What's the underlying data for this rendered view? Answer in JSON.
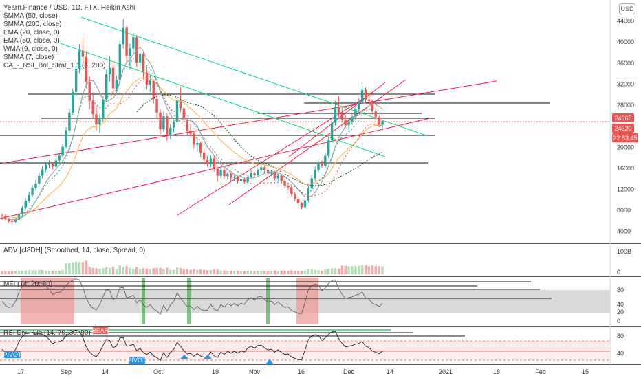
{
  "header": {
    "title": "Yearn.Finance / USD, 1D, FTX, Heikin Ashi",
    "currency_button": "USD"
  },
  "indicators": [
    "SMMA (50, close)",
    "SMMA (200, close)",
    "EMA (20, close, 0)",
    "EMA (50, close, 0)",
    "WMA (9, close, 0)",
    "SMMA (7, close)",
    "CA_-_RSI_Bol_Strat_1.1 (6, 200)"
  ],
  "price_tags": {
    "tag1": "24965",
    "tag2": "24320",
    "tag3": "22:53:45"
  },
  "panes": {
    "adv": {
      "label": "ADV [cI8DH] (Smoothed, 14, close, Spread, 0)",
      "ticks": [
        "100B",
        "0"
      ]
    },
    "mfi": {
      "label": "MFI (14, 20, 80)",
      "ticks": [
        "80",
        "40",
        "20",
        "0"
      ]
    },
    "rsi": {
      "label": "RSI Div - Lib (14, 70, 30, 90)",
      "ticks": [
        "80",
        "40"
      ],
      "tag_labels": {
        "bear": "BEAR",
        "pivot": "PIVOT"
      }
    }
  },
  "colors": {
    "bull": "#26a69a",
    "bear": "#ef5350",
    "green_line": "#00e676",
    "red_line": "#ff1744"
  },
  "chart_data": {
    "type": "candlestick",
    "title": "Yearn.Finance / USD, 1D, FTX, Heikin Ashi",
    "x_ticks": [
      "17",
      "Sep",
      "14",
      "Oct",
      "19",
      "Nov",
      "16",
      "Dec",
      "14",
      "2021",
      "18",
      "Feb",
      "15"
    ],
    "y_ticks": [
      "44000",
      "40000",
      "36000",
      "32000",
      "28000",
      "24000",
      "20000",
      "16000",
      "12000",
      "8000",
      "4000"
    ],
    "ylim": [
      2000,
      48000
    ],
    "candles": [
      [
        7000,
        7400,
        6200,
        6900
      ],
      [
        6900,
        7200,
        6100,
        6300
      ],
      [
        6300,
        6700,
        5600,
        5900
      ],
      [
        5900,
        6300,
        5400,
        5800
      ],
      [
        5800,
        6500,
        5500,
        6200
      ],
      [
        6200,
        7600,
        5900,
        7300
      ],
      [
        7300,
        8800,
        7000,
        8500
      ],
      [
        8500,
        10200,
        8200,
        9800
      ],
      [
        9800,
        11500,
        9400,
        10900
      ],
      [
        10900,
        12800,
        10500,
        12300
      ],
      [
        12300,
        13800,
        11800,
        13100
      ],
      [
        13100,
        15200,
        12800,
        14600
      ],
      [
        14600,
        16500,
        14000,
        15800
      ],
      [
        15800,
        17200,
        15300,
        16700
      ],
      [
        16700,
        17500,
        16000,
        16900
      ],
      [
        16900,
        17200,
        15800,
        16300
      ],
      [
        16300,
        17900,
        16000,
        17500
      ],
      [
        17500,
        18900,
        17200,
        18400
      ],
      [
        18400,
        20600,
        18100,
        20100
      ],
      [
        20100,
        23800,
        19700,
        23200
      ],
      [
        23200,
        27300,
        22800,
        26600
      ],
      [
        26600,
        31200,
        26100,
        30500
      ],
      [
        30500,
        35800,
        29900,
        34900
      ],
      [
        34900,
        39600,
        34100,
        38400
      ],
      [
        38400,
        40800,
        35600,
        37200
      ],
      [
        37200,
        38300,
        31200,
        32400
      ],
      [
        32400,
        33500,
        27300,
        28800
      ],
      [
        28800,
        30400,
        25600,
        26300
      ],
      [
        26300,
        27700,
        23200,
        24300
      ],
      [
        24300,
        26300,
        22700,
        25600
      ],
      [
        25600,
        29700,
        24900,
        29100
      ],
      [
        29100,
        34700,
        28700,
        33900
      ],
      [
        33900,
        37300,
        32500,
        35100
      ],
      [
        35100,
        36200,
        29700,
        31200
      ],
      [
        31200,
        33600,
        30600,
        32800
      ],
      [
        32800,
        40300,
        32200,
        39600
      ],
      [
        39600,
        44400,
        38800,
        42700
      ],
      [
        42700,
        43100,
        36100,
        37400
      ],
      [
        37400,
        39700,
        34800,
        38800
      ],
      [
        38800,
        41700,
        37600,
        40900
      ],
      [
        40900,
        41300,
        35300,
        36100
      ],
      [
        36100,
        38700,
        34900,
        37800
      ],
      [
        37800,
        38100,
        33300,
        34200
      ],
      [
        34200,
        35300,
        31000,
        31900
      ],
      [
        31900,
        33700,
        30500,
        32600
      ],
      [
        32600,
        32900,
        28300,
        29200
      ],
      [
        29200,
        30500,
        25400,
        26600
      ],
      [
        26600,
        27300,
        22400,
        23400
      ],
      [
        23400,
        26800,
        22900,
        25900
      ],
      [
        25900,
        26400,
        21200,
        22300
      ],
      [
        22300,
        24400,
        21600,
        23700
      ],
      [
        23700,
        25300,
        22800,
        24800
      ],
      [
        24800,
        29800,
        24300,
        28900
      ],
      [
        28900,
        31500,
        26700,
        27400
      ],
      [
        27400,
        27700,
        24700,
        25300
      ],
      [
        25300,
        25600,
        22200,
        23100
      ],
      [
        23100,
        24400,
        21800,
        22600
      ],
      [
        22600,
        23000,
        19700,
        20500
      ],
      [
        20500,
        21900,
        19200,
        20800
      ],
      [
        20800,
        21100,
        18100,
        19000
      ],
      [
        19000,
        19600,
        17000,
        17600
      ],
      [
        17600,
        18400,
        16300,
        16800
      ],
      [
        16800,
        18500,
        16300,
        17900
      ],
      [
        17900,
        18400,
        15400,
        15900
      ],
      [
        15900,
        16300,
        13400,
        14600
      ],
      [
        14600,
        16100,
        14100,
        15600
      ],
      [
        15600,
        15900,
        13900,
        14500
      ],
      [
        14500,
        15300,
        13900,
        15000
      ],
      [
        15000,
        15200,
        13500,
        14200
      ],
      [
        14200,
        14900,
        13600,
        14400
      ],
      [
        14400,
        14600,
        13100,
        13600
      ],
      [
        13600,
        14300,
        13200,
        13900
      ],
      [
        13900,
        14200,
        13000,
        13400
      ],
      [
        13400,
        14700,
        13100,
        14400
      ],
      [
        14400,
        15600,
        14000,
        15100
      ],
      [
        15100,
        15400,
        14300,
        14700
      ],
      [
        14700,
        16000,
        14400,
        15700
      ],
      [
        15700,
        16600,
        15300,
        16200
      ],
      [
        16200,
        16500,
        15200,
        15600
      ],
      [
        15600,
        15900,
        14600,
        15000
      ],
      [
        15000,
        15700,
        14500,
        15200
      ],
      [
        15200,
        15500,
        13700,
        14100
      ],
      [
        14100,
        14900,
        13600,
        14600
      ],
      [
        14600,
        14800,
        13100,
        13600
      ],
      [
        13600,
        13900,
        12300,
        12700
      ],
      [
        12700,
        13300,
        11900,
        12400
      ],
      [
        12400,
        12700,
        10700,
        11100
      ],
      [
        11100,
        11400,
        9800,
        10200
      ],
      [
        10200,
        10500,
        8900,
        9300
      ],
      [
        9300,
        9600,
        8200,
        8600
      ],
      [
        8600,
        10200,
        8300,
        9900
      ],
      [
        9900,
        12700,
        9500,
        12200
      ],
      [
        12200,
        14700,
        11800,
        14100
      ],
      [
        14100,
        16300,
        13600,
        15700
      ],
      [
        15700,
        17400,
        15300,
        16900
      ],
      [
        16900,
        17500,
        16100,
        16500
      ],
      [
        16500,
        18900,
        16200,
        18400
      ],
      [
        18400,
        21900,
        17900,
        21300
      ],
      [
        21300,
        25300,
        20800,
        24600
      ],
      [
        24600,
        28800,
        24100,
        27700
      ],
      [
        27700,
        29800,
        25700,
        26400
      ],
      [
        26400,
        27700,
        24700,
        25300
      ],
      [
        25300,
        26200,
        23600,
        24200
      ],
      [
        24200,
        25400,
        23300,
        24900
      ],
      [
        24900,
        26400,
        24300,
        25800
      ],
      [
        25800,
        27700,
        25300,
        27200
      ],
      [
        27200,
        29300,
        26700,
        28600
      ],
      [
        28600,
        31700,
        28100,
        30900
      ],
      [
        30900,
        31400,
        28300,
        29100
      ],
      [
        29100,
        30200,
        28000,
        28800
      ],
      [
        28800,
        29100,
        26100,
        26800
      ],
      [
        26800,
        27500,
        25200,
        25700
      ],
      [
        25700,
        26000,
        23800,
        24300
      ],
      [
        24300,
        25200,
        23200,
        24965
      ]
    ]
  }
}
